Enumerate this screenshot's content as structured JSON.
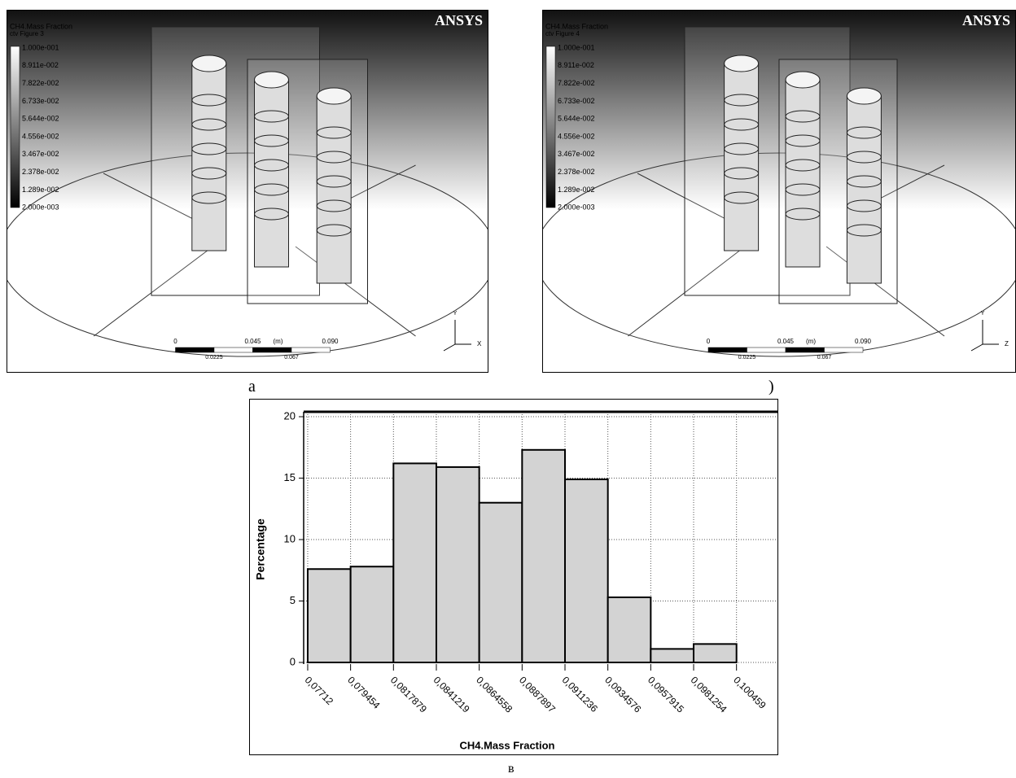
{
  "panels": [
    {
      "legend_title": "CH4.Mass Fraction",
      "figure_label": "ctv Figure 3",
      "logo": "ANSYS",
      "legend_labels": [
        "1.000e-001",
        "8.911e-002",
        "7.822e-002",
        "6.733e-002",
        "5.644e-002",
        "4.556e-002",
        "3.467e-002",
        "2.378e-002",
        "1.289e-002",
        "2.000e-003"
      ],
      "scale_labels": [
        "0",
        "0.045",
        "0.090",
        "(m)"
      ],
      "scale_sublabels": [
        "0.0225",
        "0.067"
      ],
      "axes": [
        "Y",
        "X"
      ]
    },
    {
      "legend_title": "CH4.Mass Fraction",
      "figure_label": "ctv Figure 4",
      "logo": "ANSYS",
      "legend_labels": [
        "1.000e-001",
        "8.911e-002",
        "7.822e-002",
        "6.733e-002",
        "5.644e-002",
        "4.556e-002",
        "3.467e-002",
        "2.378e-002",
        "1.289e-002",
        "2.000e-003"
      ],
      "scale_labels": [
        "0",
        "0.045",
        "0.090",
        "(m)"
      ],
      "scale_sublabels": [
        "0.0225",
        "0.067"
      ],
      "axes": [
        "Y",
        "Z"
      ]
    }
  ],
  "captions": [
    "a",
    ")",
    "в"
  ],
  "chart_data": {
    "type": "histogram",
    "xlabel": "CH4.Mass Fraction",
    "ylabel": "Percentage",
    "bins": [
      0.07712,
      0.079454,
      0.0817879,
      0.0841219,
      0.0864558,
      0.0887897,
      0.0911236,
      0.0934576,
      0.0957915,
      0.0981254,
      0.100459
    ],
    "values": [
      7.6,
      7.8,
      16.2,
      15.9,
      13.0,
      17.3,
      14.9,
      5.3,
      1.1,
      1.5
    ],
    "color": "#d3d3d3",
    "edgecolor": "#000000",
    "xlim": [
      0.0769,
      0.1026
    ],
    "ylim": [
      0,
      20.4
    ],
    "xticks": [
      {
        "value": 0.07712,
        "label": "0,07712"
      },
      {
        "value": 0.079454,
        "label": "0,079454"
      },
      {
        "value": 0.0817879,
        "label": "0,0817879"
      },
      {
        "value": 0.0841219,
        "label": "0,0841219"
      },
      {
        "value": 0.0864558,
        "label": "0,0864558"
      },
      {
        "value": 0.0887897,
        "label": "0,0887897"
      },
      {
        "value": 0.0911236,
        "label": "0,0911236"
      },
      {
        "value": 0.0934576,
        "label": "0,0934576"
      },
      {
        "value": 0.0957915,
        "label": "0,0957915"
      },
      {
        "value": 0.0981254,
        "label": "0,0981254"
      },
      {
        "value": 0.100459,
        "label": "0,100459"
      }
    ],
    "yticks": [
      0,
      5,
      10,
      15,
      20
    ],
    "grid": true
  }
}
